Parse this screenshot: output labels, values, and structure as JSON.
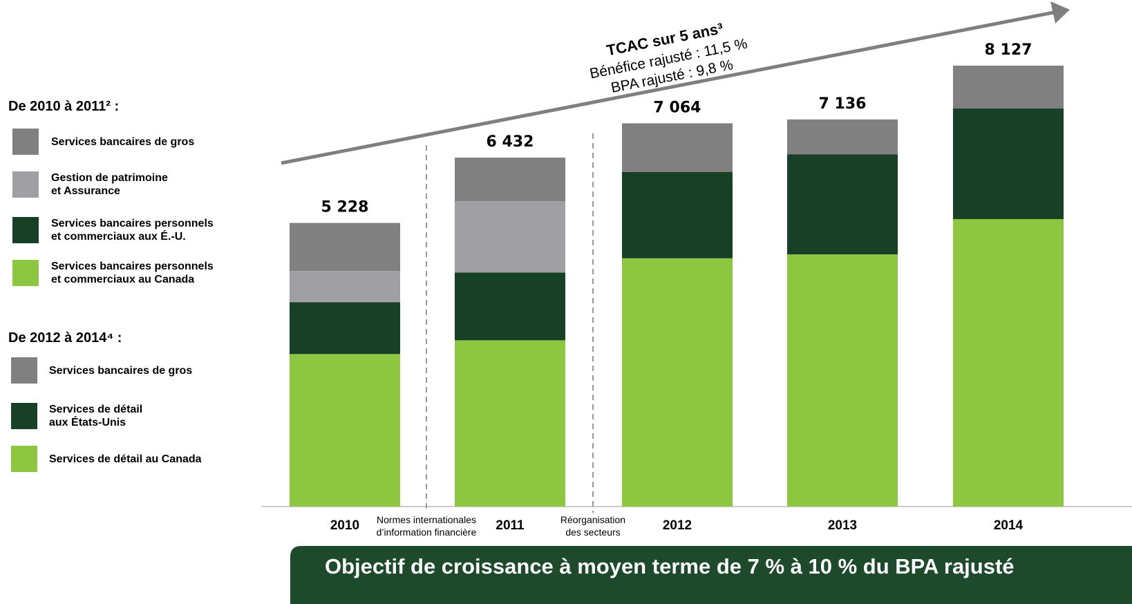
{
  "chart_data": {
    "type": "stacked_bar",
    "categories": [
      "2010",
      "2011",
      "2012",
      "2013",
      "2014"
    ],
    "legend_titles": [
      "De 2010 à 2011² :",
      "De 2012 à 2014⁴ :"
    ],
    "series": [
      {
        "name": "Services bancaires de gros",
        "color": "#808080",
        "values": [
          886,
          802,
          null,
          null,
          null
        ]
      },
      {
        "name": "Gestion de patrimoine\net Assurance",
        "color": "#a0a0a4",
        "values": [
          574,
          1315,
          null,
          null,
          null
        ]
      },
      {
        "name": "Services bancaires personnels\net commerciaux aux É.-U.",
        "color": "#174027",
        "values": [
          957,
          1250,
          null,
          null,
          null
        ]
      },
      {
        "name": "Services bancaires personnels\net commerciaux au Canada",
        "color": "#8dc63f",
        "values": [
          2811,
          3065,
          null,
          null,
          null
        ]
      },
      {
        "name": "Services bancaires de gros",
        "color": "#808080",
        "values": [
          null,
          null,
          895,
          642,
          790
        ]
      },
      {
        "name": "Services de détail\naux États-Unis",
        "color": "#174027",
        "values": [
          null,
          null,
          1592,
          1846,
          2038
        ]
      },
      {
        "name": "Services de détail au Canada",
        "color": "#8dc63f",
        "values": [
          null,
          null,
          4577,
          4648,
          5299
        ]
      }
    ],
    "totals": {
      "values": [
        5228,
        6432,
        7064,
        7136,
        8127
      ],
      "value_labels": [
        "5 228",
        "6 432",
        "7 064",
        "7 136",
        "8 127"
      ]
    },
    "annotations": [
      "TCAC sur 5 ans³",
      "Bénéfice rajusté : 11,5 %",
      "BPA rajusté : 9,8 %"
    ],
    "separators": [
      "Normes internationales\nd’information financière",
      "Réorganisation\ndes secteurs"
    ],
    "banner": "Objectif de croissance à moyen terme de 7 % à 10 % du BPA rajusté"
  }
}
